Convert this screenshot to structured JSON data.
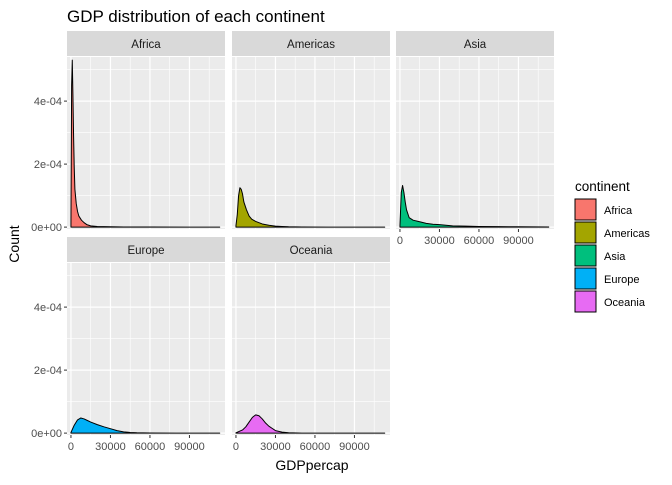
{
  "chart_data": {
    "type": "area",
    "title": "GDP distribution of each continent",
    "xlabel": "GDPpercap",
    "ylabel": "Count",
    "xlim": [
      -3000,
      117000
    ],
    "ylim": [
      -6e-06,
      0.00054
    ],
    "x_ticks": [
      0,
      30000,
      60000,
      90000
    ],
    "x_tick_labels": [
      "0",
      "30000",
      "60000",
      "90000"
    ],
    "y_ticks": [
      0,
      0.0002,
      0.0004
    ],
    "y_tick_labels": [
      "0e+00",
      "2e-04",
      "4e-04"
    ],
    "grid": true,
    "legend": {
      "title": "continent",
      "position": "right",
      "entries": [
        "Africa",
        "Americas",
        "Asia",
        "Europe",
        "Oceania"
      ]
    },
    "colors": {
      "Africa": "#F8766D",
      "Americas": "#A3A500",
      "Asia": "#00BF7D",
      "Europe": "#00B0F6",
      "Oceania": "#E76BF3",
      "panel_bg": "#EBEBEB",
      "strip_bg": "#D9D9D9",
      "grid": "#FFFFFF"
    },
    "panels": [
      {
        "name": "Africa",
        "x": [
          0,
          500,
          1000,
          1500,
          2000,
          2500,
          3000,
          4000,
          5000,
          6000,
          8000,
          10000,
          12000,
          15000,
          20000,
          30000,
          40000,
          60000,
          90000,
          113000
        ],
        "y": [
          1e-05,
          0.00045,
          0.00053,
          0.00042,
          0.00029,
          0.00019,
          0.00012,
          7.5e-05,
          5e-05,
          3.5e-05,
          2.2e-05,
          1.4e-05,
          8e-06,
          4e-06,
          2e-06,
          1e-06,
          5e-07,
          2e-07,
          0,
          0
        ]
      },
      {
        "name": "Americas",
        "x": [
          0,
          1000,
          2000,
          3000,
          4000,
          5000,
          6000,
          8000,
          10000,
          12000,
          15000,
          20000,
          25000,
          30000,
          35000,
          40000,
          50000,
          70000,
          90000,
          113000
        ],
        "y": [
          5e-06,
          4e-05,
          0.0001,
          0.000125,
          0.00012,
          0.000105,
          8e-05,
          5.5e-05,
          3.5e-05,
          2.5e-05,
          1.8e-05,
          1e-05,
          6e-06,
          3e-06,
          2e-06,
          1e-06,
          5e-07,
          0,
          0,
          0
        ]
      },
      {
        "name": "Asia",
        "x": [
          0,
          1000,
          2000,
          3000,
          4000,
          5000,
          7000,
          10000,
          15000,
          20000,
          25000,
          30000,
          35000,
          40000,
          50000,
          60000,
          75000,
          90000,
          113000
        ],
        "y": [
          5e-06,
          0.00011,
          0.000132,
          0.00011,
          8e-05,
          5.5e-05,
          3e-05,
          2.2e-05,
          1.7e-05,
          1.2e-05,
          9e-06,
          8e-06,
          6e-06,
          4e-06,
          3e-06,
          2e-06,
          1.5e-06,
          1e-06,
          5e-07
        ]
      },
      {
        "name": "Europe",
        "x": [
          0,
          2500,
          5000,
          7500,
          10000,
          12500,
          15000,
          20000,
          25000,
          30000,
          35000,
          40000,
          45000,
          50000,
          60000,
          80000,
          113000
        ],
        "y": [
          2e-06,
          2.5e-05,
          4.2e-05,
          4.8e-05,
          4.5e-05,
          4e-05,
          3.5e-05,
          2.7e-05,
          2e-05,
          1.4e-05,
          8e-06,
          4e-06,
          2e-06,
          1e-06,
          3e-07,
          0,
          0
        ]
      },
      {
        "name": "Oceania",
        "x": [
          0,
          5000,
          7500,
          10000,
          12500,
          15000,
          17500,
          20000,
          22500,
          25000,
          27500,
          30000,
          35000,
          40000,
          50000,
          113000
        ],
        "y": [
          1e-06,
          1e-05,
          2e-05,
          3.5e-05,
          5e-05,
          5.8e-05,
          5.5e-05,
          4.5e-05,
          3.2e-05,
          2.2e-05,
          1.5e-05,
          8e-06,
          3e-06,
          1e-06,
          0,
          0
        ]
      }
    ]
  }
}
